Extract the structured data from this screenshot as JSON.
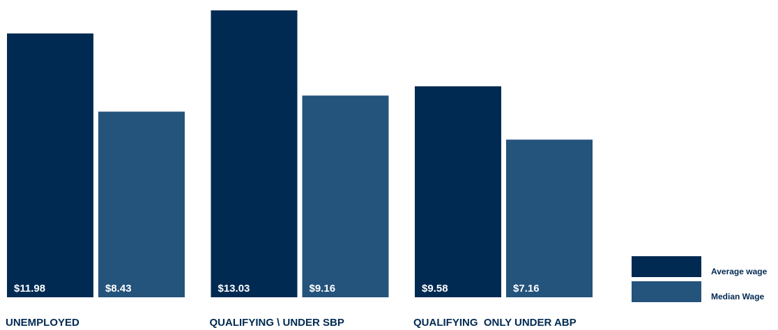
{
  "chart_data": {
    "type": "bar",
    "categories": [
      "UNEMPLOYED",
      "QUALIFYING \\ UNDER SBP",
      "QUALIFYING  ONLY UNDER ABP"
    ],
    "series": [
      {
        "name": "Average wage",
        "color": "#012a52",
        "values": [
          11.98,
          13.03,
          9.58
        ],
        "value_labels": [
          "$11.98",
          "$13.03",
          "$9.58"
        ]
      },
      {
        "name": "Median Wage",
        "color": "#24537c",
        "values": [
          8.43,
          9.16,
          7.16
        ],
        "value_labels": [
          "$8.43",
          "$9.16",
          "$7.16"
        ]
      }
    ],
    "ylim": [
      0,
      13.5
    ],
    "legend": "bottom-right"
  }
}
